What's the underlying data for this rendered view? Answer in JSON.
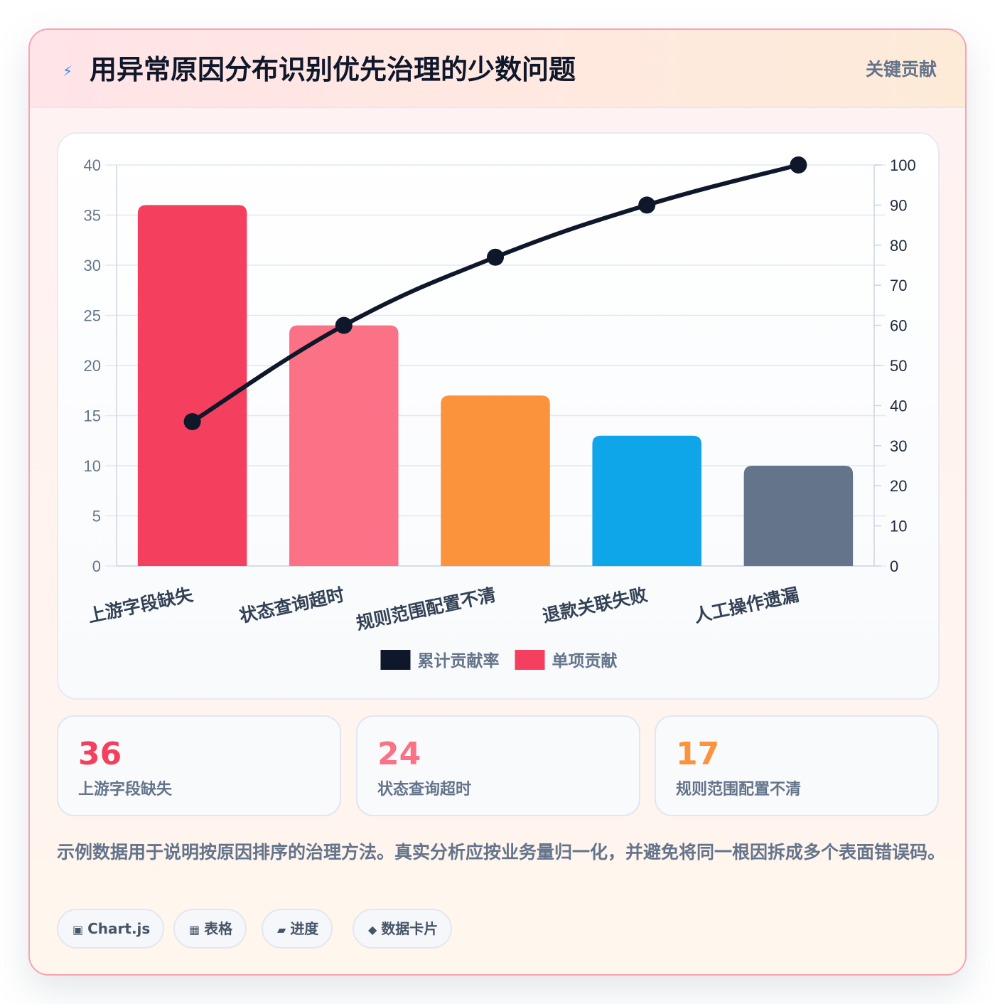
{
  "header": {
    "icon": "lightning-icon",
    "title": "用异常原因分布识别优先治理的少数问题",
    "tag": "关键贡献"
  },
  "chart_data": {
    "type": "bar",
    "categories": [
      "上游字段缺失",
      "状态查询超时",
      "规则范围配置不清",
      "退款关联失败",
      "人工操作遗漏"
    ],
    "series": [
      {
        "name": "单项贡献",
        "type": "bar",
        "axis": "left",
        "values": [
          36,
          24,
          17,
          13,
          10
        ],
        "colors": [
          "#f43f5e",
          "#fb7185",
          "#fb923c",
          "#0ea5e9",
          "#64748b"
        ]
      },
      {
        "name": "累计贡献率",
        "type": "line",
        "axis": "right",
        "values": [
          36,
          60,
          77,
          90,
          100
        ],
        "color": "#0f172a"
      }
    ],
    "ylim": [
      0,
      40
    ],
    "yticks": [
      0,
      5,
      10,
      15,
      20,
      25,
      30,
      35,
      40
    ],
    "y2lim": [
      0,
      100
    ],
    "y2ticks": [
      0,
      10,
      20,
      30,
      40,
      50,
      60,
      70,
      80,
      90,
      100
    ],
    "grid": true,
    "legend_position": "bottom",
    "legend": [
      {
        "name": "累计贡献率",
        "color": "#0f172a"
      },
      {
        "name": "单项贡献",
        "color": "#f43f5e"
      }
    ]
  },
  "stats": [
    {
      "value": "36",
      "label": "上游字段缺失",
      "color": "#f43f5e"
    },
    {
      "value": "24",
      "label": "状态查询超时",
      "color": "#fb7185"
    },
    {
      "value": "17",
      "label": "规则范围配置不清",
      "color": "#fb923c"
    }
  ],
  "note": "示例数据用于说明按原因排序的治理方法。真实分析应按业务量归一化，并避免将同一根因拆成多个表面错误码。",
  "chips": [
    {
      "icon": "▣",
      "icon_name": "chart-icon",
      "label": "Chart.js"
    },
    {
      "icon": "▦",
      "icon_name": "table-icon",
      "label": "表格"
    },
    {
      "icon": "▰",
      "icon_name": "progress-icon",
      "label": "进度"
    },
    {
      "icon": "◆",
      "icon_name": "diamond-icon",
      "label": "数据卡片"
    }
  ]
}
